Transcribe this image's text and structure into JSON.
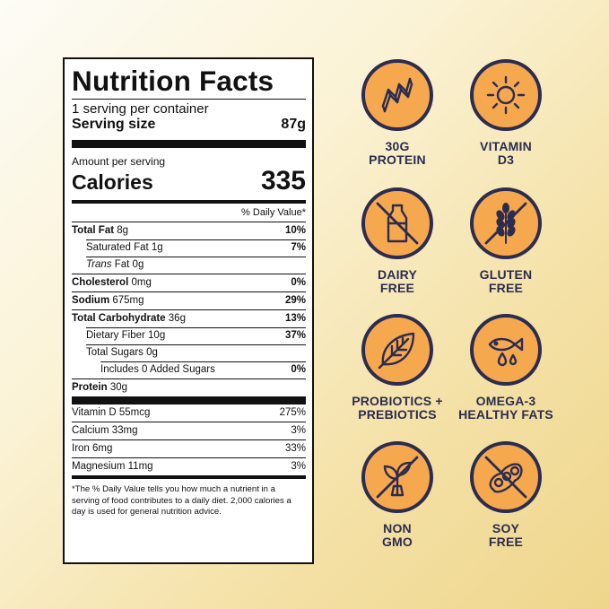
{
  "label": {
    "title": "Nutrition Facts",
    "servings": "1 serving per container",
    "serving_size_label": "Serving size",
    "serving_size_value": "87g",
    "amount_per_serving": "Amount per serving",
    "calories_label": "Calories",
    "calories_value": "335",
    "dv_header": "% Daily Value*",
    "nutrients": [
      {
        "name": "Total Fat",
        "amount": "8g",
        "dv": "10%"
      },
      {
        "name": "Saturated Fat",
        "amount": "1g",
        "dv": "7%"
      },
      {
        "name": "Trans",
        "amount": "Fat 0g",
        "dv": ""
      },
      {
        "name": "Cholesterol",
        "amount": "0mg",
        "dv": "0%"
      },
      {
        "name": "Sodium",
        "amount": "675mg",
        "dv": "29%"
      },
      {
        "name": "Total Carbohydrate",
        "amount": "36g",
        "dv": "13%"
      },
      {
        "name": "Dietary Fiber",
        "amount": "10g",
        "dv": "37%"
      },
      {
        "name": "Total Sugars",
        "amount": "0g",
        "dv": ""
      },
      {
        "name": "Includes 0 Added Sugars",
        "amount": "",
        "dv": "0%"
      },
      {
        "name": "Protein",
        "amount": "30g",
        "dv": ""
      }
    ],
    "vitamins": [
      {
        "text": "Vitamin D 55mcg",
        "dv": "275%"
      },
      {
        "text": "Calcium 33mg",
        "dv": "3%"
      },
      {
        "text": "Iron 6mg",
        "dv": "33%"
      },
      {
        "text": "Magnesium 11mg",
        "dv": "3%"
      }
    ],
    "footnote": "*The % Daily Value tells you how much a nutrient in a serving of food contributes to a daily diet. 2,000 calories a day is used for general nutrition advice."
  },
  "badges": [
    {
      "icon": "protein-icon",
      "line1": "30G",
      "line2": "PROTEIN"
    },
    {
      "icon": "sun-icon",
      "line1": "VITAMIN",
      "line2": "D3"
    },
    {
      "icon": "milk-bottle-icon",
      "line1": "DAIRY",
      "line2": "FREE"
    },
    {
      "icon": "wheat-icon",
      "line1": "GLUTEN",
      "line2": "FREE"
    },
    {
      "icon": "leaf-icon",
      "line1": "PROBIOTICS +",
      "line2": "PREBIOTICS"
    },
    {
      "icon": "fish-icon",
      "line1": "OMEGA-3",
      "line2": "HEALTHY FATS"
    },
    {
      "icon": "sprout-icon",
      "line1": "NON",
      "line2": "GMO"
    },
    {
      "icon": "soybean-icon",
      "line1": "SOY",
      "line2": "FREE"
    }
  ],
  "colors": {
    "badge_fill": "#f6a84f",
    "badge_outline": "#2b2c4f",
    "label_border": "#111111"
  }
}
